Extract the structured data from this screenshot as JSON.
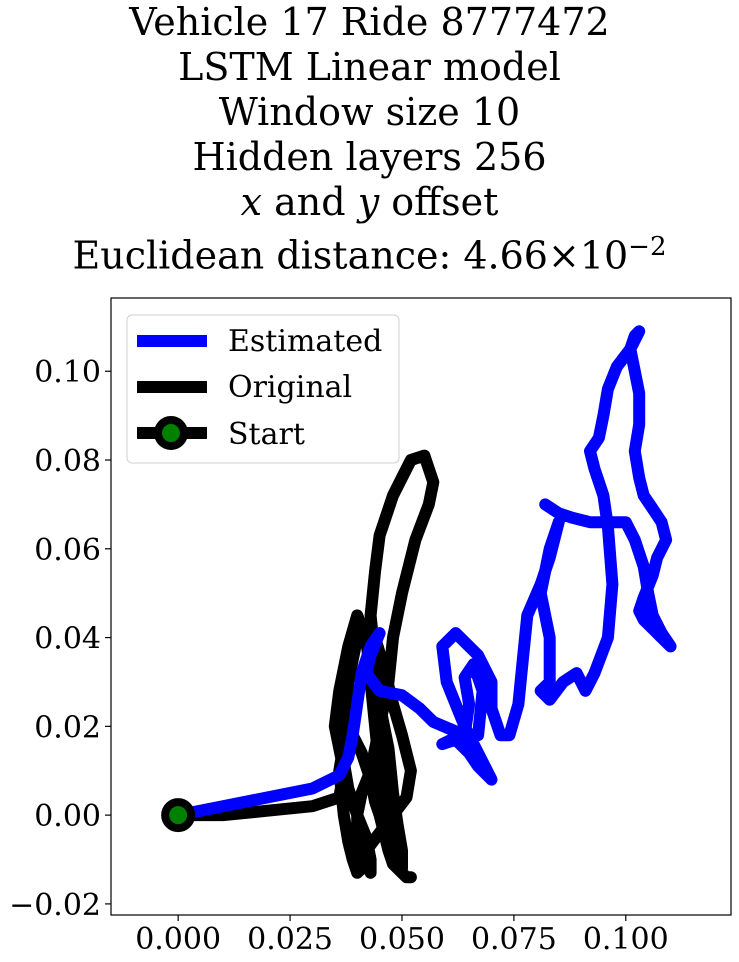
{
  "title": {
    "line1": "Vehicle 17 Ride 8777472",
    "line2": "LSTM Linear model",
    "line3": "Window size 10",
    "line4": "Hidden layers 256",
    "line5_var_x": "x",
    "line5_and": " and ",
    "line5_var_y": "y",
    "line5_rest": " offset",
    "line6_prefix": "Euclidean distance: ",
    "line6_mantissa": "4.66",
    "line6_times": "×",
    "line6_base": "10",
    "line6_exp": "−2"
  },
  "chart_data": {
    "type": "line",
    "title": "Vehicle 17 Ride 8777472 LSTM Linear model Window size 10 Hidden layers 256 x and y offset Euclidean distance: 4.66×10^-2",
    "xlabel": "",
    "ylabel": "",
    "xlim": [
      -0.015,
      0.1235
    ],
    "ylim": [
      -0.0225,
      0.1165
    ],
    "xticks": [
      0.0,
      0.025,
      0.05,
      0.075,
      0.1
    ],
    "xtick_labels": [
      "0.000",
      "0.025",
      "0.050",
      "0.075",
      "0.100"
    ],
    "yticks": [
      -0.02,
      0.0,
      0.02,
      0.04,
      0.06,
      0.08,
      0.1
    ],
    "ytick_labels": [
      "−0.02",
      "0.00",
      "0.02",
      "0.04",
      "0.06",
      "0.08",
      "0.10"
    ],
    "grid": false,
    "legend_position": "top-left",
    "series": [
      {
        "name": "Estimated",
        "color": "#0000ff",
        "x": [
          0.0,
          0.01,
          0.02,
          0.03,
          0.036,
          0.038,
          0.039,
          0.04,
          0.041,
          0.043,
          0.045,
          0.043,
          0.042,
          0.045,
          0.05,
          0.054,
          0.057,
          0.064,
          0.065,
          0.064,
          0.066,
          0.068,
          0.067,
          0.064,
          0.061,
          0.059,
          0.062,
          0.065,
          0.067,
          0.07,
          0.068,
          0.064,
          0.06,
          0.059,
          0.062,
          0.067,
          0.07,
          0.07,
          0.072,
          0.074,
          0.076,
          0.077,
          0.078,
          0.081,
          0.083,
          0.085,
          0.083,
          0.081,
          0.083,
          0.083,
          0.081,
          0.083,
          0.086,
          0.089,
          0.091,
          0.093,
          0.096,
          0.097,
          0.096,
          0.095,
          0.093,
          0.092,
          0.094,
          0.095,
          0.096,
          0.098,
          0.101,
          0.103,
          0.102,
          0.101,
          0.102,
          0.103,
          0.103,
          0.102,
          0.103,
          0.104,
          0.106,
          0.108,
          0.109,
          0.107,
          0.106,
          0.104,
          0.103,
          0.104,
          0.106,
          0.108,
          0.11,
          0.108,
          0.106,
          0.105,
          0.104,
          0.102,
          0.1,
          0.098,
          0.096,
          0.092,
          0.088,
          0.085,
          0.082
        ],
        "y": [
          0.0,
          0.002,
          0.004,
          0.006,
          0.009,
          0.013,
          0.018,
          0.025,
          0.032,
          0.038,
          0.041,
          0.036,
          0.032,
          0.028,
          0.027,
          0.024,
          0.021,
          0.018,
          0.025,
          0.031,
          0.034,
          0.028,
          0.018,
          0.017,
          0.017,
          0.016,
          0.017,
          0.014,
          0.011,
          0.008,
          0.012,
          0.02,
          0.03,
          0.038,
          0.041,
          0.036,
          0.03,
          0.024,
          0.018,
          0.018,
          0.025,
          0.035,
          0.045,
          0.052,
          0.058,
          0.066,
          0.06,
          0.05,
          0.04,
          0.03,
          0.028,
          0.026,
          0.03,
          0.032,
          0.028,
          0.032,
          0.04,
          0.052,
          0.065,
          0.072,
          0.078,
          0.082,
          0.085,
          0.09,
          0.096,
          0.101,
          0.105,
          0.109,
          0.108,
          0.105,
          0.1,
          0.095,
          0.088,
          0.082,
          0.076,
          0.072,
          0.069,
          0.066,
          0.062,
          0.058,
          0.054,
          0.049,
          0.046,
          0.044,
          0.042,
          0.04,
          0.038,
          0.041,
          0.045,
          0.05,
          0.056,
          0.062,
          0.066,
          0.066,
          0.066,
          0.066,
          0.067,
          0.068,
          0.07
        ]
      },
      {
        "name": "Original",
        "color": "#000000",
        "x": [
          0.0,
          0.01,
          0.02,
          0.03,
          0.036,
          0.037,
          0.036,
          0.035,
          0.036,
          0.038,
          0.04,
          0.042,
          0.043,
          0.044,
          0.045,
          0.046,
          0.047,
          0.048,
          0.049,
          0.05,
          0.05,
          0.049,
          0.048,
          0.047,
          0.045,
          0.044,
          0.043,
          0.044,
          0.045,
          0.048,
          0.052,
          0.055,
          0.057,
          0.056,
          0.053,
          0.05,
          0.048,
          0.047,
          0.045,
          0.043,
          0.041,
          0.04,
          0.04,
          0.041,
          0.042,
          0.043,
          0.043,
          0.042,
          0.04,
          0.038,
          0.037,
          0.037,
          0.038,
          0.04,
          0.042,
          0.044,
          0.046,
          0.048,
          0.05,
          0.052,
          0.051,
          0.048,
          0.045,
          0.042,
          0.041,
          0.04,
          0.039,
          0.038,
          0.037,
          0.036,
          0.037,
          0.039,
          0.041,
          0.043,
          0.044,
          0.045,
          0.046,
          0.047,
          0.048,
          0.05,
          0.051,
          0.052
        ],
        "y": [
          0.0,
          0.0,
          0.001,
          0.002,
          0.004,
          0.01,
          0.015,
          0.02,
          0.028,
          0.038,
          0.045,
          0.04,
          0.03,
          0.02,
          0.01,
          0.002,
          -0.003,
          -0.008,
          -0.012,
          -0.012,
          -0.008,
          -0.002,
          0.005,
          0.015,
          0.025,
          0.035,
          0.045,
          0.055,
          0.063,
          0.072,
          0.08,
          0.081,
          0.075,
          0.07,
          0.062,
          0.05,
          0.04,
          0.03,
          0.02,
          0.01,
          0.005,
          0.0,
          -0.004,
          -0.008,
          -0.011,
          -0.013,
          -0.01,
          -0.005,
          0.0,
          0.006,
          0.012,
          0.02,
          0.03,
          0.04,
          0.043,
          0.04,
          0.033,
          0.025,
          0.018,
          0.01,
          0.004,
          0.0,
          -0.004,
          -0.008,
          -0.012,
          -0.013,
          -0.01,
          -0.006,
          0.0,
          0.01,
          0.016,
          0.018,
          0.014,
          0.008,
          0.003,
          0.0,
          -0.004,
          -0.008,
          -0.011,
          -0.013,
          -0.014,
          -0.014
        ]
      }
    ],
    "start_point": {
      "name": "Start",
      "x": 0.0,
      "y": 0.0,
      "color": "#008000",
      "edge_color": "#000000"
    }
  }
}
